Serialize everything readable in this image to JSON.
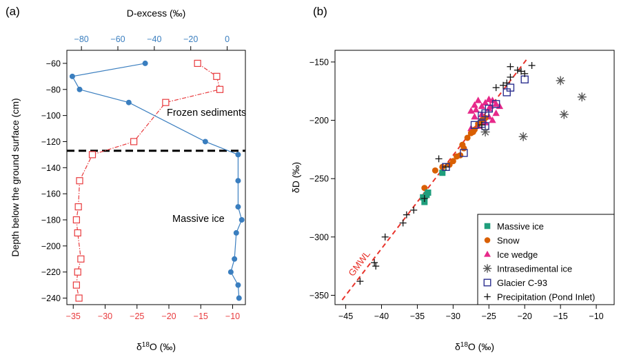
{
  "colors": {
    "d18o": "#e8393c",
    "dexcess": "#3a7ebf",
    "gmwl": "#e8322a",
    "massive_ice": "#1f9e7c",
    "snow": "#d95f02",
    "ice_wedge": "#e7298a",
    "intrasedimental": "#555555",
    "glacier": "#2b2f8f",
    "precip": "#111111",
    "axis": "#000000"
  },
  "chart_data": [
    {
      "type": "line",
      "panel_label": "(a)",
      "xlabel_bottom": "δ18O (‰)",
      "xlabel_top": "D-excess (‰)",
      "ylabel": "Depth below the ground surface (cm)",
      "xlim_bottom": [
        -36,
        -8
      ],
      "xlim_top": [
        -88,
        10
      ],
      "ylim": [
        -245,
        -50
      ],
      "x_ticks_bottom": [
        -35,
        -30,
        -25,
        -20,
        -15,
        -10
      ],
      "x_ticks_top": [
        -80,
        -60,
        -40,
        -20,
        0
      ],
      "y_ticks": [
        -60,
        -80,
        -100,
        -120,
        -140,
        -160,
        -180,
        -200,
        -220,
        -240
      ],
      "boundary_depth": -127,
      "annotations": [
        "Frozen sediments",
        "Massive ice"
      ],
      "series": [
        {
          "key": "d18o",
          "marker": "open-square",
          "points": [
            [
              -15.5,
              -60
            ],
            [
              -12.5,
              -70
            ],
            [
              -12,
              -80
            ],
            [
              -20.5,
              -90
            ],
            [
              -25.5,
              -120
            ],
            [
              -32,
              -130
            ],
            [
              -34,
              -150
            ],
            [
              -34.2,
              -170
            ],
            [
              -34.5,
              -180
            ],
            [
              -34.3,
              -190
            ],
            [
              -33.8,
              -210
            ],
            [
              -34.3,
              -220
            ],
            [
              -34.5,
              -230
            ],
            [
              -34.1,
              -240
            ]
          ]
        },
        {
          "key": "dexcess",
          "marker": "filled-circle",
          "points": [
            [
              -45,
              -60
            ],
            [
              -85,
              -70
            ],
            [
              -81,
              -80
            ],
            [
              -54,
              -90
            ],
            [
              -12,
              -120
            ],
            [
              6,
              -130
            ],
            [
              6,
              -150
            ],
            [
              6,
              -170
            ],
            [
              8,
              -180
            ],
            [
              5,
              -190
            ],
            [
              4,
              -210
            ],
            [
              2,
              -220
            ],
            [
              6,
              -230
            ],
            [
              6.5,
              -240
            ]
          ]
        }
      ]
    },
    {
      "type": "scatter",
      "panel_label": "(b)",
      "xlabel": "δ18O (‰)",
      "ylabel": "δD (‰)",
      "xlim": [
        -46.5,
        -7.5
      ],
      "ylim": [
        -358,
        -140
      ],
      "x_ticks": [
        -45,
        -40,
        -35,
        -30,
        -25,
        -20,
        -15,
        -10
      ],
      "y_ticks": [
        -150,
        -200,
        -250,
        -300,
        -350
      ],
      "gmwl_label": "GMWL",
      "gmwl": {
        "slope": 8,
        "intercept": 10,
        "x_range": [
          -45.5,
          -19.5
        ]
      },
      "legend_position": "bottom-right",
      "series": [
        {
          "key": "massive_ice",
          "name": "Massive ice",
          "marker": "filled-square",
          "points": [
            [
              -34,
              -270
            ],
            [
              -33.7,
              -264
            ],
            [
              -33.5,
              -262
            ],
            [
              -34.2,
              -266
            ],
            [
              -31.5,
              -245
            ]
          ]
        },
        {
          "key": "snow",
          "name": "Snow",
          "marker": "filled-circle",
          "points": [
            [
              -34,
              -258
            ],
            [
              -32.5,
              -243
            ],
            [
              -31.5,
              -240
            ],
            [
              -30.5,
              -238
            ],
            [
              -29.5,
              -231
            ],
            [
              -29,
              -230
            ],
            [
              -28.5,
              -224
            ],
            [
              -28.7,
              -221
            ],
            [
              -28,
              -215
            ],
            [
              -27.5,
              -211
            ],
            [
              -27,
              -208
            ],
            [
              -26.5,
              -203
            ],
            [
              -26,
              -200
            ],
            [
              -25.5,
              -198
            ],
            [
              -27.2,
              -210
            ],
            [
              -30,
              -235
            ]
          ]
        },
        {
          "key": "ice_wedge",
          "name": "Ice wedge",
          "marker": "filled-triangle",
          "points": [
            [
              -27.5,
              -192
            ],
            [
              -27,
              -187
            ],
            [
              -26.5,
              -183
            ],
            [
              -26,
              -188
            ],
            [
              -25.5,
              -185
            ],
            [
              -25,
              -182
            ],
            [
              -24.5,
              -183
            ],
            [
              -24,
              -186
            ],
            [
              -23.5,
              -188
            ],
            [
              -24,
              -194
            ],
            [
              -25,
              -197
            ],
            [
              -26,
              -199
            ],
            [
              -27,
              -197
            ],
            [
              -26.5,
              -205
            ],
            [
              -25.5,
              -202
            ],
            [
              -24.5,
              -200
            ],
            [
              -26,
              -195
            ],
            [
              -25,
              -190
            ],
            [
              -24.8,
              -188
            ],
            [
              -26.8,
              -191
            ],
            [
              -27.5,
              -207
            ]
          ]
        },
        {
          "key": "intrasedimental",
          "name": "Intrasedimental ice",
          "marker": "asterisk",
          "points": [
            [
              -15,
              -166
            ],
            [
              -12,
              -180
            ],
            [
              -14.5,
              -195
            ],
            [
              -20.2,
              -214
            ],
            [
              -25.5,
              -210
            ]
          ]
        },
        {
          "key": "glacier",
          "name": "Glacier C-93",
          "marker": "open-square",
          "points": [
            [
              -20,
              -165
            ],
            [
              -22,
              -172
            ],
            [
              -22.5,
              -176
            ],
            [
              -24,
              -186
            ],
            [
              -25,
              -190
            ],
            [
              -25.5,
              -194
            ],
            [
              -26,
              -196
            ],
            [
              -26,
              -203
            ],
            [
              -25.5,
              -205
            ],
            [
              -27,
              -204
            ],
            [
              -28.5,
              -228
            ],
            [
              -31,
              -240
            ]
          ]
        },
        {
          "key": "precip",
          "name": "Precipitation (Pond Inlet)",
          "marker": "plus",
          "points": [
            [
              -43,
              -338
            ],
            [
              -41,
              -322
            ],
            [
              -40.8,
              -325
            ],
            [
              -39.5,
              -300
            ],
            [
              -37,
              -288
            ],
            [
              -36.5,
              -281
            ],
            [
              -35.5,
              -277
            ],
            [
              -34,
              -267
            ],
            [
              -32,
              -233
            ],
            [
              -31,
              -240
            ],
            [
              -26,
              -204
            ],
            [
              -23,
              -170
            ],
            [
              -22.5,
              -168
            ],
            [
              -22,
              -163
            ],
            [
              -21,
              -157
            ],
            [
              -20.5,
              -158
            ],
            [
              -22,
              -154
            ],
            [
              -19,
              -153
            ],
            [
              -24,
              -172
            ],
            [
              -20,
              -160
            ]
          ]
        }
      ]
    }
  ]
}
